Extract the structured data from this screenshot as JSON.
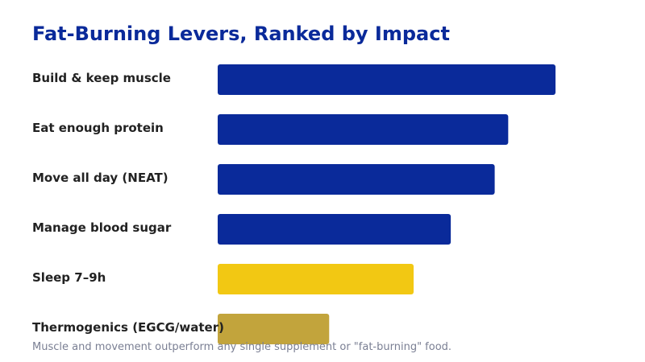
{
  "chart_data": {
    "type": "bar",
    "orientation": "horizontal",
    "title": "Fat-Burning Levers, Ranked by Impact",
    "categories": [
      "Build & keep muscle",
      "Eat enough protein",
      "Move all day (NEAT)",
      "Manage blood sugar",
      "Sleep 7–9h",
      "Thermogenics (EGCG/water)"
    ],
    "values": [
      100,
      86,
      82,
      69,
      58,
      33
    ],
    "xlim": [
      0,
      100
    ],
    "grid": false,
    "legend": "none",
    "xlabel": "",
    "ylabel": "",
    "bar_colors": [
      "#0a2a9a",
      "#0a2a9a",
      "#0a2a9a",
      "#0a2a9a",
      "#f2c813",
      "#c2a43c"
    ],
    "footnote": "Muscle and movement outperform any single supplement or \"fat-burning\" food."
  },
  "colors": {
    "title": "#0a2a9a",
    "label": "#222222",
    "footnote": "#7a7f93",
    "background": "#ffffff"
  }
}
